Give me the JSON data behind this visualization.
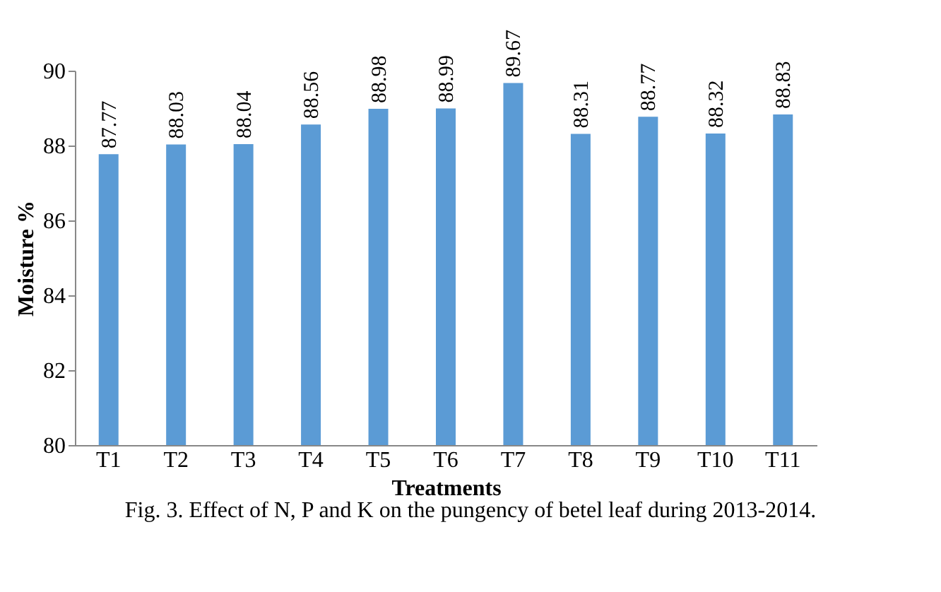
{
  "chart_data": {
    "type": "bar",
    "xlabel": "Treatments",
    "ylabel": "Moisture %",
    "categories": [
      "T1",
      "T2",
      "T3",
      "T4",
      "T5",
      "T6",
      "T7",
      "T8",
      "T9",
      "T10",
      "T11"
    ],
    "values": [
      87.77,
      88.03,
      88.04,
      88.56,
      88.98,
      88.99,
      89.67,
      88.31,
      88.77,
      88.32,
      88.83
    ],
    "color": "#5b9bd5",
    "ylim": [
      80,
      90
    ],
    "yticks": [
      80,
      82,
      84,
      86,
      88,
      90
    ],
    "grid": false,
    "data_labels": true,
    "annotations": [
      "Fig. 3. Effect of N, P and K on the pungency of betel leaf during 2013-2014."
    ]
  }
}
